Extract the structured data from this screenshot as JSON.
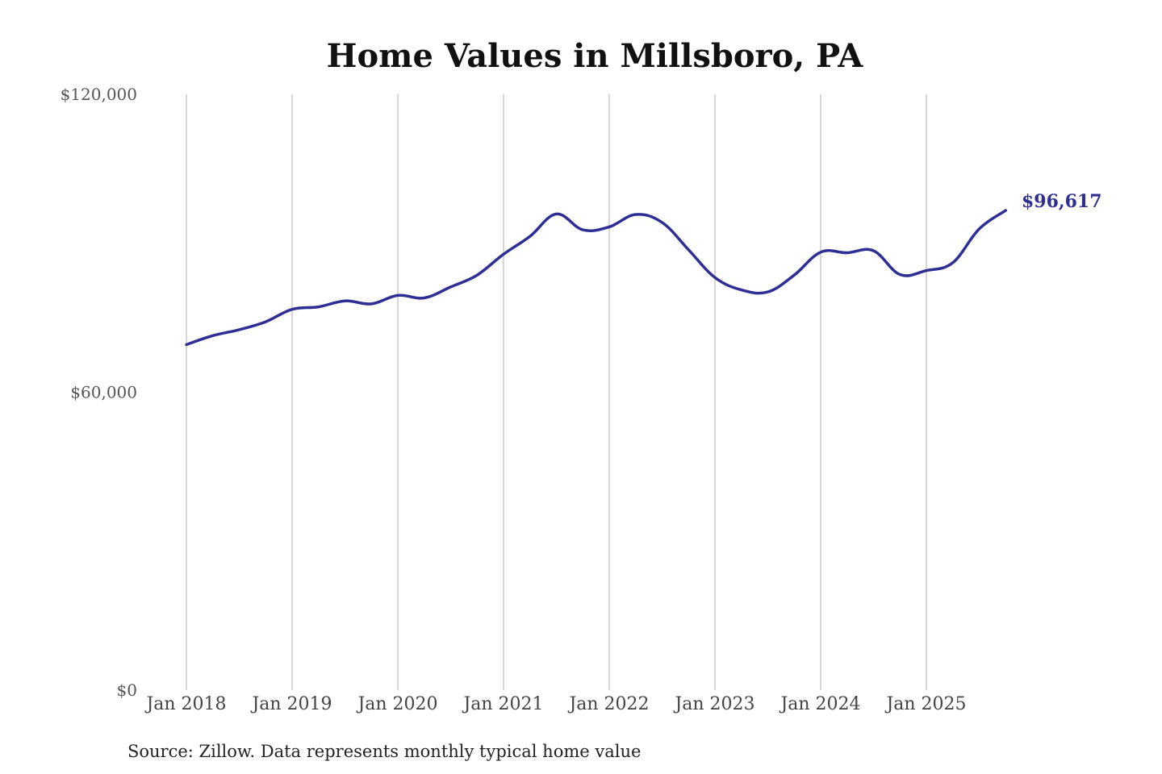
{
  "chart_data": {
    "type": "line",
    "title": "Home Values in Millsboro, PA",
    "xlabel": "",
    "ylabel": "",
    "ylim": [
      0,
      120000
    ],
    "yticks": [
      0,
      60000,
      120000
    ],
    "ytick_labels": [
      "$0",
      "$60,000",
      "$120,000"
    ],
    "x_ticks": [
      "2018-01",
      "2019-01",
      "2020-01",
      "2021-01",
      "2022-01",
      "2023-01",
      "2024-01",
      "2025-01"
    ],
    "x_tick_labels": [
      "Jan 2018",
      "Jan 2019",
      "Jan 2020",
      "Jan 2021",
      "Jan 2022",
      "Jan 2023",
      "Jan 2024",
      "Jan 2025"
    ],
    "grid": "vertical at x ticks",
    "series": [
      {
        "color": "#2e2e94",
        "points": [
          [
            "2018-01",
            69600
          ],
          [
            "2018-04",
            71400
          ],
          [
            "2018-07",
            72600
          ],
          [
            "2018-10",
            74200
          ],
          [
            "2019-01",
            76700
          ],
          [
            "2019-04",
            77200
          ],
          [
            "2019-07",
            78400
          ],
          [
            "2019-10",
            77800
          ],
          [
            "2020-01",
            79500
          ],
          [
            "2020-04",
            79000
          ],
          [
            "2020-07",
            81200
          ],
          [
            "2020-10",
            83600
          ],
          [
            "2021-01",
            87800
          ],
          [
            "2021-04",
            91400
          ],
          [
            "2021-07",
            95900
          ],
          [
            "2021-10",
            92700
          ],
          [
            "2022-01",
            93300
          ],
          [
            "2022-04",
            95800
          ],
          [
            "2022-07",
            94200
          ],
          [
            "2022-10",
            88700
          ],
          [
            "2023-01",
            83100
          ],
          [
            "2023-04",
            80600
          ],
          [
            "2023-07",
            80200
          ],
          [
            "2023-10",
            83600
          ],
          [
            "2024-01",
            88200
          ],
          [
            "2024-04",
            88100
          ],
          [
            "2024-07",
            88500
          ],
          [
            "2024-10",
            83700
          ],
          [
            "2025-01",
            84500
          ],
          [
            "2025-04",
            86100
          ],
          [
            "2025-07",
            92900
          ],
          [
            "2025-10",
            96617
          ]
        ]
      }
    ],
    "end_label": "$96,617",
    "source": "Source: Zillow. Data represents monthly typical home value"
  }
}
